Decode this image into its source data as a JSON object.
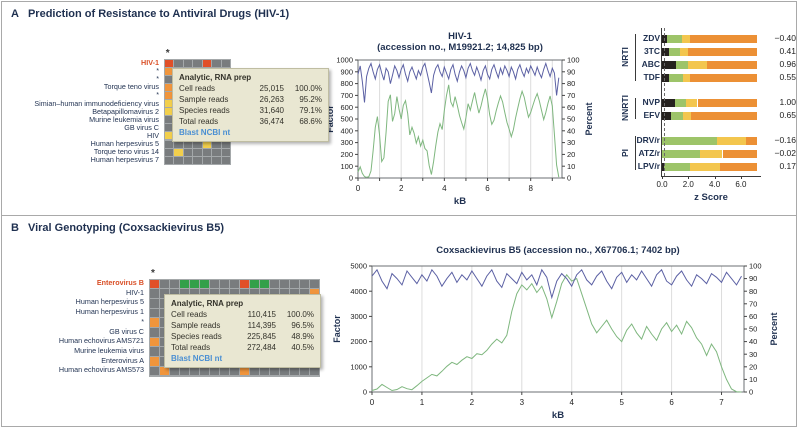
{
  "colors": {
    "navy": "#1f3050",
    "highlight_red": "#d94f26",
    "cell_gray": "#797c7e",
    "cell_red": "#e04f28",
    "cell_orange": "#f0953c",
    "cell_yellow": "#f2cf4c",
    "cell_green": "#33a04a",
    "tooltip_bg": "#e9e7d2",
    "link_blue": "#4a8fd3",
    "line_green": "#7fb77f",
    "line_blue": "#5c61a4",
    "bar_black": "#26221f",
    "bar_green": "#9dc469",
    "bar_yellow": "#f3c64e",
    "bar_orange": "#ec9035"
  },
  "panel_a": {
    "letter": "A",
    "title": "Prediction of Resistance to Antiviral Drugs (HIV-1)",
    "heatmap": {
      "column_marker": "*",
      "rows": [
        {
          "label": "HIV-1",
          "highlight": true,
          "cells": "R...R.."
        },
        {
          "label": "*",
          "cells": "O......"
        },
        {
          "label": "*",
          "cells": "......."
        },
        {
          "label": "Torque teno virus",
          "cells": "O......"
        },
        {
          "label": "*",
          "cells": "O......"
        },
        {
          "label": "Simian–human immunodeficiency virus",
          "cells": "Y......"
        },
        {
          "label": "Betapapillomavirus 2",
          "cells": "Y......"
        },
        {
          "label": "Murine leukemia virus",
          "cells": "......."
        },
        {
          "label": "GB virus C",
          "cells": "......."
        },
        {
          "label": "HIV",
          "cells": "Y...G.."
        },
        {
          "label": "Human herpesvirus 5",
          "cells": "....Y.."
        },
        {
          "label": "Torque teno virus 14",
          "cells": ".Y....."
        },
        {
          "label": "Human herpesvirus 7",
          "cells": "......."
        }
      ],
      "tooltip": {
        "header": "Analytic, RNA prep",
        "rows": [
          {
            "name": "Cell reads",
            "count": "25,015",
            "pct": "100.0%"
          },
          {
            "name": "Sample reads",
            "count": "26,263",
            "pct": "95.2%"
          },
          {
            "name": "Species reads",
            "count": "31,640",
            "pct": "79.1%"
          },
          {
            "name": "Total reads",
            "count": "36,474",
            "pct": "68.6%"
          }
        ],
        "link": "Blast NCBI nt"
      }
    }
  },
  "panel_b": {
    "letter": "B",
    "title": "Viral Genotyping (Coxsackievirus B5)",
    "heatmap": {
      "column_marker": "*",
      "rows": [
        {
          "label": "Enterovirus B",
          "highlight": true,
          "cells": "R..GGG...RGG....."
        },
        {
          "label": "HIV-1",
          "cells": "................O"
        },
        {
          "label": "Human herpesvirus 5",
          "cells": "................."
        },
        {
          "label": "Human herpesvirus 1",
          "cells": "................."
        },
        {
          "label": "*",
          "cells": "O................"
        },
        {
          "label": "GB virus C",
          "cells": "................."
        },
        {
          "label": "Human echovirus AMS721",
          "cells": "O................"
        },
        {
          "label": "Murine leukemia virus",
          "cells": "................."
        },
        {
          "label": "Enterovirus A",
          "cells": "O........O......."
        },
        {
          "label": "Human echovirus AMS573",
          "cells": ".O.......O......."
        }
      ],
      "tooltip": {
        "header": "Analytic, RNA prep",
        "rows": [
          {
            "name": "Cell reads",
            "count": "110,415",
            "pct": "100.0%"
          },
          {
            "name": "Sample reads",
            "count": "114,395",
            "pct": "96.5%"
          },
          {
            "name": "Species reads",
            "count": "225,845",
            "pct": "48.9%"
          },
          {
            "name": "Total reads",
            "count": "272,484",
            "pct": "40.5%"
          }
        ],
        "link": "Blast NCBI nt"
      }
    }
  },
  "chart_data": [
    {
      "id": "hiv1-coverage",
      "panel": "A",
      "type": "line",
      "title": "HIV-1",
      "subtitle": "(accession no., M19921.2; 14,825 bp)",
      "xlabel": "kB",
      "ylabel_left": "Factor",
      "ylabel_right": "Percent",
      "xlim": [
        0,
        9.45
      ],
      "ylim_left": [
        0,
        1000
      ],
      "ylim_right": [
        0,
        100
      ],
      "x_grid": [
        1,
        2,
        3,
        4,
        5,
        6,
        7,
        8,
        9
      ],
      "x_ticks": [
        0,
        1,
        2,
        3,
        4,
        5,
        6,
        7,
        8,
        9
      ],
      "x_tick_labels": [
        "0",
        "",
        "2",
        "",
        "4",
        "",
        "6",
        "",
        "8",
        ""
      ],
      "y_ticks_left": [
        0,
        100,
        200,
        300,
        400,
        500,
        600,
        700,
        800,
        900,
        1000
      ],
      "y_ticks_right": [
        0,
        10,
        20,
        30,
        40,
        50,
        60,
        70,
        80,
        90,
        100
      ],
      "series": [
        {
          "name": "coverage-factor",
          "axis": "left",
          "color_key": "line_green",
          "x_start": 0,
          "x_step": 0.1,
          "values": [
            50,
            95,
            40,
            12,
            6,
            10,
            60,
            230,
            430,
            520,
            360,
            140,
            170,
            390,
            650,
            705,
            480,
            545,
            690,
            585,
            500,
            615,
            655,
            545,
            365,
            430,
            380,
            295,
            350,
            270,
            320,
            250,
            230,
            105,
            30,
            140,
            270,
            390,
            460,
            410,
            570,
            700,
            790,
            645,
            605,
            690,
            615,
            530,
            470,
            415,
            510,
            630,
            575,
            650,
            725,
            635,
            550,
            610,
            690,
            755,
            670,
            535,
            455,
            490,
            570,
            635,
            695,
            645,
            555,
            470,
            415,
            350,
            410,
            510,
            590,
            670,
            735,
            685,
            595,
            515,
            555,
            615,
            670,
            715,
            655,
            575,
            495,
            555,
            635,
            695,
            610,
            370,
            110,
            8
          ]
        },
        {
          "name": "percent-identity",
          "axis": "right",
          "color_key": "line_blue",
          "x_start": 0,
          "x_step": 0.1,
          "values": [
            88,
            95,
            82,
            64,
            86,
            93,
            97,
            90,
            84,
            92,
            96,
            89,
            83,
            93,
            90,
            80,
            87,
            95,
            91,
            85,
            92,
            96,
            88,
            82,
            90,
            94,
            89,
            84,
            91,
            87,
            94,
            97,
            89,
            81,
            72,
            87,
            93,
            96,
            90,
            86,
            94,
            89,
            84,
            92,
            96,
            88,
            82,
            90,
            95,
            91,
            85,
            93,
            97,
            91,
            87,
            94,
            89,
            83,
            91,
            95,
            88,
            84,
            92,
            96,
            90,
            85,
            93,
            88,
            95,
            91,
            86,
            94,
            90,
            84,
            92,
            96,
            90,
            86,
            93,
            89,
            95,
            91,
            87,
            94,
            89,
            85,
            92,
            97,
            91,
            86,
            93,
            89,
            70,
            85
          ]
        }
      ]
    },
    {
      "id": "drug-resistance-zscore",
      "panel": "A",
      "type": "bar",
      "orientation": "horizontal-stacked",
      "xlabel": "z Score",
      "xlim": [
        0,
        7.45
      ],
      "x_ticks": [
        0,
        2,
        4,
        6
      ],
      "x_tick_labels": [
        "0.0",
        "2.0",
        "4.0",
        "6.0"
      ],
      "stack_order": [
        "bar_black",
        "bar_green",
        "bar_yellow",
        "bar_orange"
      ],
      "groups": [
        {
          "name": "NRTI",
          "drugs": [
            {
              "label": "ZDV",
              "bounds": [
                0.35,
                1.5,
                2.1,
                7.2
              ],
              "z": -0.4,
              "z_display": "−0.40"
            },
            {
              "label": "3TC",
              "bounds": [
                0.5,
                1.4,
                2.0,
                7.2
              ],
              "z": 0.41,
              "z_display": "0.41"
            },
            {
              "label": "ABC",
              "bounds": [
                1.05,
                2.0,
                3.4,
                7.2
              ],
              "z": 0.96,
              "z_display": "0.96"
            },
            {
              "label": "TDF",
              "bounds": [
                0.55,
                1.6,
                2.15,
                7.2
              ],
              "z": 0.55,
              "z_display": "0.55"
            }
          ]
        },
        {
          "name": "NNRTI",
          "drugs": [
            {
              "label": "NVP",
              "bounds": [
                1.0,
                1.8,
                2.7,
                7.2
              ],
              "z": 1.0,
              "z_display": "1.00"
            },
            {
              "label": "EFV",
              "bounds": [
                0.65,
                1.6,
                2.2,
                7.2
              ],
              "z": 0.65,
              "z_display": "0.65"
            }
          ]
        },
        {
          "name": "PI",
          "drugs": [
            {
              "label": "DRV/r",
              "bounds": [
                0,
                4.2,
                6.4,
                7.2
              ],
              "z": -0.16,
              "z_display": "−0.16"
            },
            {
              "label": "ATZ/r",
              "bounds": [
                0,
                2.9,
                4.6,
                7.2
              ],
              "z": -0.02,
              "z_display": "−0.02"
            },
            {
              "label": "LPV/r",
              "bounds": [
                0.12,
                2.1,
                4.4,
                7.2
              ],
              "z": 0.17,
              "z_display": "0.17"
            }
          ]
        }
      ]
    },
    {
      "id": "coxsackievirus-b5-coverage",
      "panel": "B",
      "type": "line",
      "title": "Coxsackievirus B5 (accession no., X67706.1; 7402 bp)",
      "subtitle": "",
      "xlabel": "kB",
      "ylabel_left": "Factor",
      "ylabel_right": "Percent",
      "xlim": [
        0,
        7.45
      ],
      "ylim_left": [
        0,
        5000
      ],
      "ylim_right": [
        0,
        100
      ],
      "x_grid": [
        1,
        2,
        3,
        4,
        5,
        6,
        7
      ],
      "x_ticks": [
        0,
        1,
        2,
        3,
        4,
        5,
        6,
        7
      ],
      "x_tick_labels": [
        "0",
        "1",
        "2",
        "3",
        "4",
        "5",
        "6",
        "7"
      ],
      "y_ticks_left": [
        0,
        1000,
        2000,
        3000,
        4000,
        5000
      ],
      "y_ticks_right": [
        0,
        10,
        20,
        30,
        40,
        50,
        60,
        70,
        80,
        90,
        100
      ],
      "series": [
        {
          "name": "coverage-factor",
          "axis": "left",
          "color_key": "line_green",
          "x_start": 0,
          "x_step": 0.1,
          "values": [
            60,
            120,
            300,
            180,
            60,
            100,
            210,
            130,
            90,
            250,
            420,
            560,
            700,
            640,
            820,
            1020,
            1180,
            1090,
            1260,
            1400,
            1330,
            1520,
            1480,
            1650,
            1900,
            2100,
            1950,
            2250,
            3200,
            3900,
            4250,
            4050,
            4300,
            3950,
            4200,
            3700,
            2950,
            3600,
            4300,
            4650,
            4400,
            4500,
            3900,
            3300,
            2700,
            2350,
            2600,
            2850,
            2500,
            2200,
            2000,
            2450,
            2700,
            2350,
            2100,
            2600,
            2300,
            2050,
            2500,
            2750,
            2400,
            2650,
            2300,
            2800,
            2550,
            2150,
            1900,
            1450,
            1900,
            1600,
            1000,
            500,
            120,
            10,
            0
          ]
        },
        {
          "name": "percent-identity",
          "axis": "right",
          "color_key": "line_blue",
          "x_start": 0,
          "x_step": 0.1,
          "values": [
            92,
            97,
            88,
            82,
            94,
            90,
            85,
            96,
            91,
            86,
            93,
            88,
            97,
            92,
            84,
            90,
            95,
            87,
            93,
            89,
            96,
            90,
            84,
            92,
            97,
            88,
            83,
            94,
            90,
            86,
            95,
            89,
            93,
            85,
            97,
            91,
            75,
            88,
            94,
            90,
            84,
            93,
            97,
            89,
            85,
            92,
            96,
            88,
            82,
            91,
            95,
            87,
            93,
            89,
            96,
            90,
            84,
            93,
            97,
            88,
            85,
            92,
            96,
            89,
            84,
            93,
            90,
            86,
            94,
            91,
            87,
            95,
            90,
            85,
            92
          ]
        }
      ]
    }
  ]
}
